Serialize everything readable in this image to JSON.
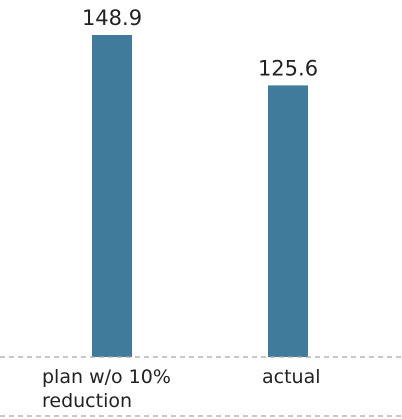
{
  "chart_data": {
    "type": "bar",
    "categories": [
      "plan w/o 10%\nreduction",
      "actual"
    ],
    "values": [
      148.9,
      125.6
    ],
    "value_labels": [
      "148.9",
      "125.6"
    ],
    "title": "",
    "xlabel": "",
    "ylabel": "",
    "ylim": [
      0,
      148.9
    ],
    "grid": false,
    "legend": "none",
    "colors": {
      "bar": "#417b9b",
      "baseline": "#a6a6a6",
      "text": "#222222"
    }
  }
}
